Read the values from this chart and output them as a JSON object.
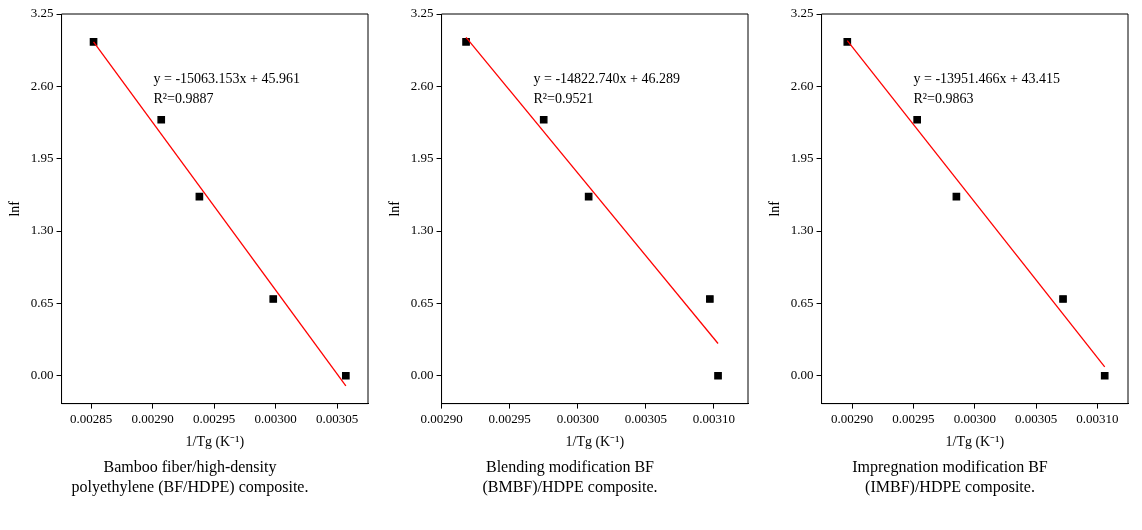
{
  "chart_data": [
    {
      "type": "scatter",
      "title": "Bamboo fiber/high-density polyethylene (BF/HDPE) composite.",
      "xlabel": "1/Tg (K⁻¹)",
      "ylabel": "lnf",
      "marker": "square",
      "grid": false,
      "legend": false,
      "xlim": [
        0.002826,
        0.003075
      ],
      "xticks": [
        {
          "value": 0.00285,
          "label": "0.00285"
        },
        {
          "value": 0.0029,
          "label": "0.00290"
        },
        {
          "value": 0.00295,
          "label": "0.00295"
        },
        {
          "value": 0.003,
          "label": "0.00300"
        },
        {
          "value": 0.00305,
          "label": "0.00305"
        }
      ],
      "ylim": [
        -0.25,
        3.25
      ],
      "yticks": [
        {
          "value": 0,
          "label": "0.00"
        },
        {
          "value": 0.65,
          "label": "0.65"
        },
        {
          "value": 1.3,
          "label": "1.30"
        },
        {
          "value": 1.95,
          "label": "1.95"
        },
        {
          "value": 2.6,
          "label": "2.60"
        },
        {
          "value": 3.25,
          "label": "3.25"
        }
      ],
      "annotations": [
        "y = -15063.153x + 45.961",
        "R²=0.9887"
      ],
      "series": [
        {
          "color": "#000000",
          "x": [
            0.002852,
            0.002907,
            0.002938,
            0.002998,
            0.003057
          ],
          "values": [
            3.0,
            2.3,
            1.61,
            0.69,
            0.0
          ]
        },
        {
          "type": "line",
          "marker": "none",
          "color": "#ff0000",
          "x": [
            0.002852,
            0.003057
          ],
          "values": [
            3.0,
            -0.09
          ]
        }
      ]
    },
    {
      "type": "scatter",
      "title": "Blending modification BF (BMBF)/HDPE composite.",
      "xlabel": "1/Tg (K⁻¹)",
      "ylabel": "lnf",
      "marker": "square",
      "grid": false,
      "legend": false,
      "xlim": [
        0.0029,
        0.003125
      ],
      "xticks": [
        {
          "value": 0.0029,
          "label": "0.00290"
        },
        {
          "value": 0.00295,
          "label": "0.00295"
        },
        {
          "value": 0.003,
          "label": "0.00300"
        },
        {
          "value": 0.00305,
          "label": "0.00305"
        },
        {
          "value": 0.0031,
          "label": "0.00310"
        }
      ],
      "ylim": [
        -0.25,
        3.25
      ],
      "yticks": [
        {
          "value": 0,
          "label": "0.00"
        },
        {
          "value": 0.65,
          "label": "0.65"
        },
        {
          "value": 1.3,
          "label": "1.30"
        },
        {
          "value": 1.95,
          "label": "1.95"
        },
        {
          "value": 2.6,
          "label": "2.60"
        },
        {
          "value": 3.25,
          "label": "3.25"
        }
      ],
      "annotations": [
        "y = -14822.740x + 46.289",
        "R²=0.9521"
      ],
      "series": [
        {
          "color": "#000000",
          "x": [
            0.002918,
            0.002975,
            0.003008,
            0.003097,
            0.003103
          ],
          "values": [
            3.0,
            2.3,
            1.61,
            0.69,
            0.0
          ]
        },
        {
          "type": "line",
          "marker": "none",
          "color": "#ff0000",
          "x": [
            0.002918,
            0.003103
          ],
          "values": [
            3.04,
            0.29
          ]
        }
      ]
    },
    {
      "type": "scatter",
      "title": "Impregnation modification BF (IMBF)/HDPE composite.",
      "xlabel": "1/Tg (K⁻¹)",
      "ylabel": "lnf",
      "marker": "square",
      "grid": false,
      "legend": false,
      "xlim": [
        0.002875,
        0.003125
      ],
      "xticks": [
        {
          "value": 0.0029,
          "label": "0.00290"
        },
        {
          "value": 0.00295,
          "label": "0.00295"
        },
        {
          "value": 0.003,
          "label": "0.00300"
        },
        {
          "value": 0.00305,
          "label": "0.00305"
        },
        {
          "value": 0.0031,
          "label": "0.00310"
        }
      ],
      "ylim": [
        -0.25,
        3.25
      ],
      "yticks": [
        {
          "value": 0,
          "label": "0.00"
        },
        {
          "value": 0.65,
          "label": "0.65"
        },
        {
          "value": 1.3,
          "label": "1.30"
        },
        {
          "value": 1.95,
          "label": "1.95"
        },
        {
          "value": 2.6,
          "label": "2.60"
        },
        {
          "value": 3.25,
          "label": "3.25"
        }
      ],
      "annotations": [
        "y = -13951.466x + 43.415",
        "R²=0.9863"
      ],
      "series": [
        {
          "color": "#000000",
          "x": [
            0.002896,
            0.002953,
            0.002985,
            0.003072,
            0.003106
          ],
          "values": [
            3.0,
            2.3,
            1.61,
            0.69,
            0.0
          ]
        },
        {
          "type": "line",
          "marker": "none",
          "color": "#ff0000",
          "x": [
            0.002896,
            0.003106
          ],
          "values": [
            3.01,
            0.08
          ]
        }
      ]
    }
  ]
}
